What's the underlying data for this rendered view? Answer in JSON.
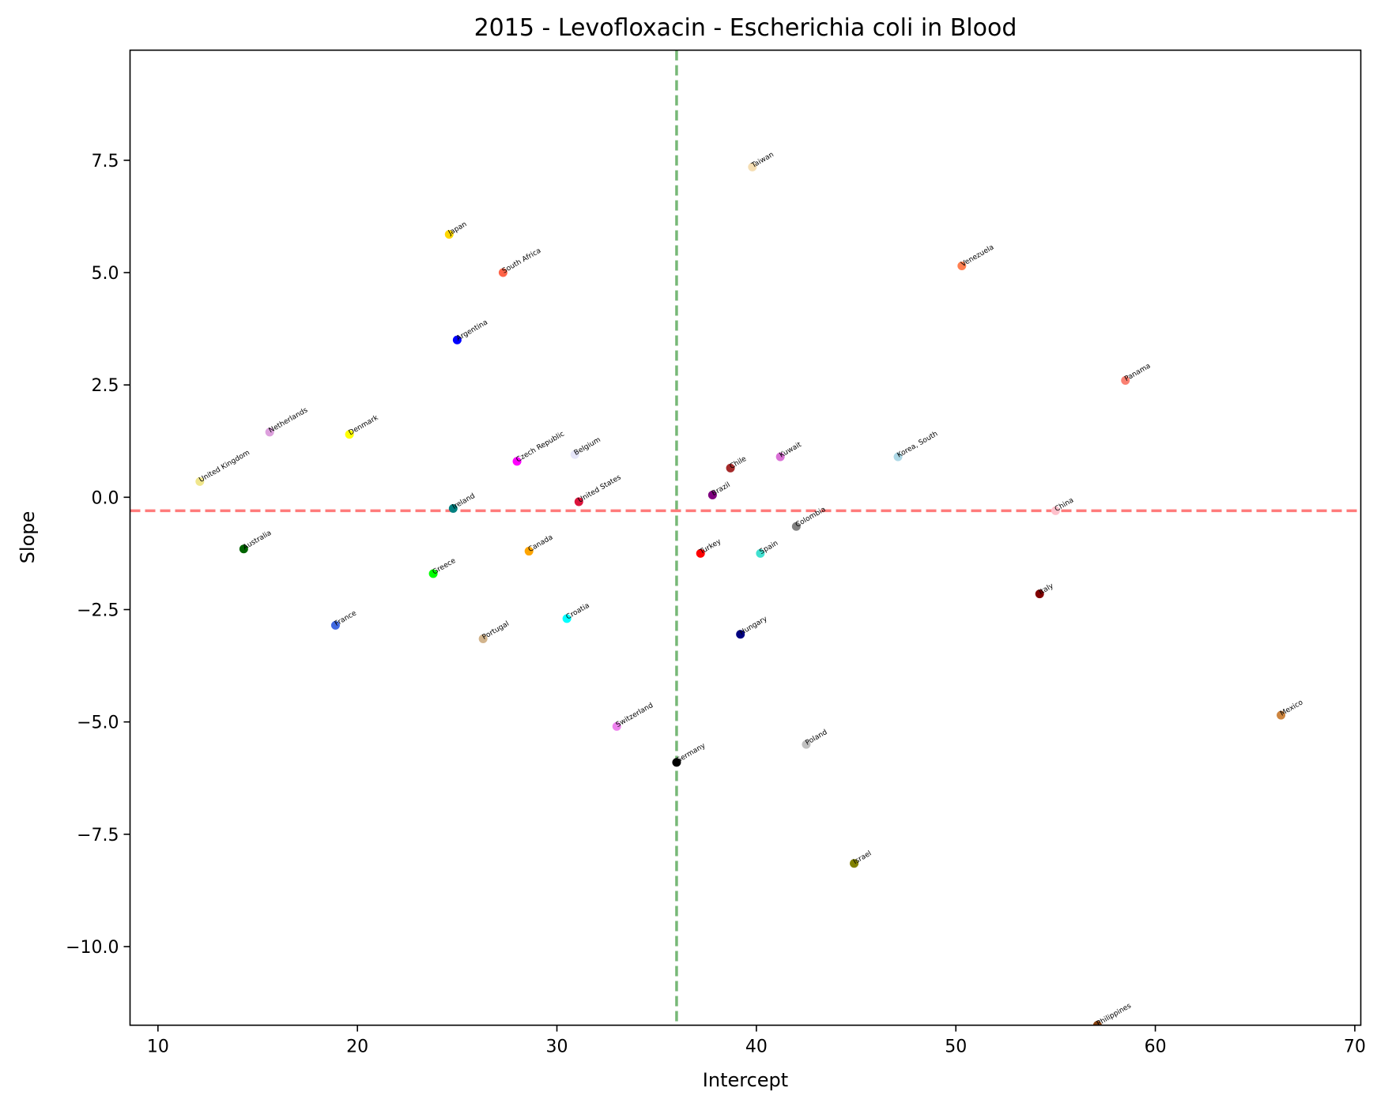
{
  "chart_data": {
    "type": "scatter",
    "title": "2015 - Levofloxacin - Escherichia coli in Blood",
    "xlabel": "Intercept",
    "ylabel": "Slope",
    "xlim": [
      8.6,
      70.3
    ],
    "ylim": [
      -11.75,
      9.95
    ],
    "xticks": [
      10,
      20,
      30,
      40,
      50,
      60,
      70
    ],
    "xtick_labels": [
      "10",
      "20",
      "30",
      "40",
      "50",
      "60",
      "70"
    ],
    "yticks": [
      -10.0,
      -7.5,
      -5.0,
      -2.5,
      0.0,
      2.5,
      5.0,
      7.5
    ],
    "ytick_labels": [
      "−10.0",
      "−7.5",
      "−5.0",
      "−2.5",
      "0.0",
      "2.5",
      "5.0",
      "7.5"
    ],
    "grid": false,
    "reference_lines": [
      {
        "orientation": "vertical",
        "value": 36.0,
        "color": "#77b877",
        "style": "dashed"
      },
      {
        "orientation": "horizontal",
        "value": -0.3,
        "color": "#ff7b7b",
        "style": "dashed"
      }
    ],
    "points": [
      {
        "label": "Taiwan",
        "x": 39.8,
        "y": 7.35,
        "color": "#f5deb3"
      },
      {
        "label": "Japan",
        "x": 24.6,
        "y": 5.85,
        "color": "#ffd700"
      },
      {
        "label": "South Africa",
        "x": 27.3,
        "y": 5.0,
        "color": "#ff6347"
      },
      {
        "label": "Venezuela",
        "x": 50.3,
        "y": 5.15,
        "color": "#ff7f50"
      },
      {
        "label": "Argentina",
        "x": 25.0,
        "y": 3.5,
        "color": "#0000ff"
      },
      {
        "label": "Panama",
        "x": 58.5,
        "y": 2.6,
        "color": "#fa8072"
      },
      {
        "label": "Netherlands",
        "x": 15.6,
        "y": 1.45,
        "color": "#dda0dd"
      },
      {
        "label": "Denmark",
        "x": 19.6,
        "y": 1.4,
        "color": "#ffff00"
      },
      {
        "label": "United Kingdom",
        "x": 12.1,
        "y": 0.35,
        "color": "#f0e68c"
      },
      {
        "label": "Czech Republic",
        "x": 28.0,
        "y": 0.8,
        "color": "#ff00ff"
      },
      {
        "label": "Belgium",
        "x": 30.9,
        "y": 0.95,
        "color": "#e6e6fa"
      },
      {
        "label": "Chile",
        "x": 38.7,
        "y": 0.65,
        "color": "#a52a2a"
      },
      {
        "label": "Kuwait",
        "x": 41.2,
        "y": 0.9,
        "color": "#da70d6"
      },
      {
        "label": "Korea, South",
        "x": 47.1,
        "y": 0.9,
        "color": "#add8e6"
      },
      {
        "label": "United States",
        "x": 31.1,
        "y": -0.1,
        "color": "#dc143c"
      },
      {
        "label": "Brazil",
        "x": 37.8,
        "y": 0.05,
        "color": "#800080"
      },
      {
        "label": "Ireland",
        "x": 24.8,
        "y": -0.25,
        "color": "#008080"
      },
      {
        "label": "China",
        "x": 55.0,
        "y": -0.3,
        "color": "#ffc0cb"
      },
      {
        "label": "Colombia",
        "x": 42.0,
        "y": -0.65,
        "color": "#808080"
      },
      {
        "label": "Australia",
        "x": 14.3,
        "y": -1.15,
        "color": "#006400"
      },
      {
        "label": "Canada",
        "x": 28.6,
        "y": -1.2,
        "color": "#ffa500"
      },
      {
        "label": "Turkey",
        "x": 37.2,
        "y": -1.25,
        "color": "#ff0000"
      },
      {
        "label": "Spain",
        "x": 40.2,
        "y": -1.25,
        "color": "#40e0d0"
      },
      {
        "label": "Greece",
        "x": 23.8,
        "y": -1.7,
        "color": "#00ff00"
      },
      {
        "label": "Italy",
        "x": 54.2,
        "y": -2.15,
        "color": "#800000"
      },
      {
        "label": "France",
        "x": 18.9,
        "y": -2.85,
        "color": "#4169e1"
      },
      {
        "label": "Croatia",
        "x": 30.5,
        "y": -2.7,
        "color": "#00ffff"
      },
      {
        "label": "Portugal",
        "x": 26.3,
        "y": -3.15,
        "color": "#d2b48c"
      },
      {
        "label": "Hungary",
        "x": 39.2,
        "y": -3.05,
        "color": "#000080"
      },
      {
        "label": "Switzerland",
        "x": 33.0,
        "y": -5.1,
        "color": "#ee82ee"
      },
      {
        "label": "Poland",
        "x": 42.5,
        "y": -5.5,
        "color": "#c0c0c0"
      },
      {
        "label": "Mexico",
        "x": 66.3,
        "y": -4.85,
        "color": "#cd853f"
      },
      {
        "label": "Germany",
        "x": 36.0,
        "y": -5.9,
        "color": "#000000"
      },
      {
        "label": "Israel",
        "x": 44.9,
        "y": -8.15,
        "color": "#808000"
      },
      {
        "label": "Philippines",
        "x": 57.1,
        "y": -11.75,
        "color": "#8b4513"
      }
    ]
  }
}
